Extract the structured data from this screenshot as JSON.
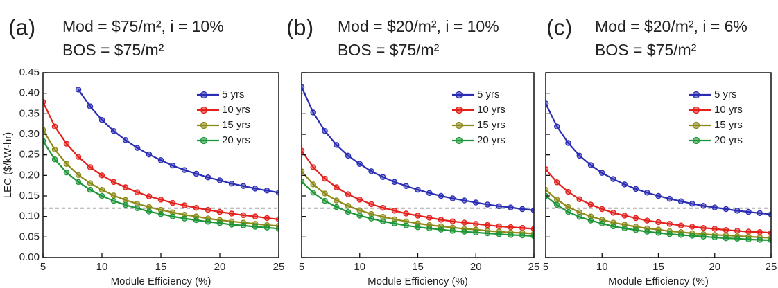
{
  "chart_data": [
    {
      "type": "line",
      "panel_label": "(a)",
      "title": "Mod = $75/m², i = 10%",
      "subtitle": "BOS = $75/m²",
      "xlabel": "Module Efficiency (%)",
      "ylabel": "LEC ($/kW-hr)",
      "x": [
        5,
        6,
        7,
        8,
        9,
        10,
        11,
        12,
        13,
        14,
        15,
        16,
        17,
        18,
        19,
        20,
        21,
        22,
        23,
        24,
        25
      ],
      "xlim": [
        5,
        25
      ],
      "xticks": [
        5,
        10,
        15,
        20,
        25
      ],
      "ylim": [
        0,
        0.45
      ],
      "yticks": [
        {
          "value": 0,
          "label": "0.00"
        },
        {
          "value": 0.05,
          "label": "0.05"
        },
        {
          "value": 0.1,
          "label": "0.10"
        },
        {
          "value": 0.15,
          "label": "0.15"
        },
        {
          "value": 0.2,
          "label": "0.20"
        },
        {
          "value": 0.25,
          "label": "0.25"
        },
        {
          "value": 0.3,
          "label": "0.30"
        },
        {
          "value": 0.35,
          "label": "0.35"
        },
        {
          "value": 0.4,
          "label": "0.40"
        },
        {
          "value": 0.45,
          "label": "0.45"
        }
      ],
      "reference_line": 0.12,
      "series": [
        {
          "name": "5 yrs",
          "color": "#2a2db3",
          "values": [
            null,
            null,
            null,
            0.409,
            0.368,
            0.335,
            0.308,
            0.286,
            0.267,
            0.251,
            0.237,
            0.224,
            0.213,
            0.204,
            0.195,
            0.188,
            0.18,
            0.174,
            0.168,
            0.163,
            0.158
          ]
        },
        {
          "name": "10 yrs",
          "color": "#e3201b",
          "values": [
            0.379,
            0.319,
            0.277,
            0.245,
            0.22,
            0.2,
            0.184,
            0.171,
            0.159,
            0.149,
            0.141,
            0.133,
            0.127,
            0.121,
            0.116,
            0.111,
            0.107,
            0.103,
            0.1,
            0.096,
            0.093
          ]
        },
        {
          "name": "15 yrs",
          "color": "#8c8a17",
          "values": [
            0.311,
            0.263,
            0.228,
            0.201,
            0.181,
            0.165,
            0.151,
            0.14,
            0.131,
            0.123,
            0.116,
            0.11,
            0.104,
            0.1,
            0.095,
            0.091,
            0.088,
            0.085,
            0.082,
            0.079,
            0.077
          ]
        },
        {
          "name": "20 yrs",
          "color": "#1c9638",
          "values": [
            0.284,
            0.239,
            0.207,
            0.184,
            0.165,
            0.15,
            0.138,
            0.128,
            0.12,
            0.112,
            0.106,
            0.1,
            0.095,
            0.091,
            0.087,
            0.084,
            0.08,
            0.078,
            0.075,
            0.073,
            0.07
          ]
        }
      ]
    },
    {
      "type": "line",
      "panel_label": "(b)",
      "title": "Mod = $20/m², i = 10%",
      "subtitle": "BOS = $75/m²",
      "xlabel": "Module Efficiency (%)",
      "x": [
        5,
        6,
        7,
        8,
        9,
        10,
        11,
        12,
        13,
        14,
        15,
        16,
        17,
        18,
        19,
        20,
        21,
        22,
        23,
        24,
        25
      ],
      "xlim": [
        5,
        25
      ],
      "xticks": [
        5,
        10,
        15,
        20,
        25
      ],
      "ylim": [
        0,
        0.45
      ],
      "yticks": [
        0,
        0.05,
        0.1,
        0.15,
        0.2,
        0.25,
        0.3,
        0.35,
        0.4,
        0.45
      ],
      "reference_line": 0.12,
      "series": [
        {
          "name": "5 yrs",
          "color": "#2a2db3",
          "values": [
            0.415,
            0.353,
            0.308,
            0.274,
            0.248,
            0.228,
            0.21,
            0.196,
            0.184,
            0.174,
            0.165,
            0.157,
            0.15,
            0.144,
            0.139,
            0.134,
            0.129,
            0.125,
            0.122,
            0.118,
            0.115
          ]
        },
        {
          "name": "10 yrs",
          "color": "#e3201b",
          "values": [
            0.26,
            0.22,
            0.192,
            0.171,
            0.154,
            0.141,
            0.13,
            0.121,
            0.114,
            0.107,
            0.102,
            0.097,
            0.092,
            0.088,
            0.085,
            0.082,
            0.079,
            0.076,
            0.074,
            0.072,
            0.07
          ]
        },
        {
          "name": "15 yrs",
          "color": "#8c8a17",
          "values": [
            0.21,
            0.178,
            0.156,
            0.139,
            0.126,
            0.115,
            0.106,
            0.099,
            0.093,
            0.088,
            0.083,
            0.079,
            0.076,
            0.073,
            0.07,
            0.068,
            0.065,
            0.063,
            0.061,
            0.06,
            0.058
          ]
        },
        {
          "name": "20 yrs",
          "color": "#1c9638",
          "values": [
            0.185,
            0.158,
            0.138,
            0.123,
            0.111,
            0.102,
            0.095,
            0.088,
            0.083,
            0.078,
            0.074,
            0.071,
            0.068,
            0.065,
            0.063,
            0.061,
            0.059,
            0.057,
            0.055,
            0.054,
            0.052
          ]
        }
      ]
    },
    {
      "type": "line",
      "panel_label": "(c)",
      "title": "Mod = $20/m², i = 6%",
      "subtitle": "BOS = $75/m²",
      "xlabel": "Module Efficiency (%)",
      "x": [
        5,
        6,
        7,
        8,
        9,
        10,
        11,
        12,
        13,
        14,
        15,
        16,
        17,
        18,
        19,
        20,
        21,
        22,
        23,
        24,
        25
      ],
      "xlim": [
        5,
        25
      ],
      "xticks": [
        5,
        10,
        15,
        20,
        25
      ],
      "ylim": [
        0,
        0.45
      ],
      "yticks": [
        0,
        0.05,
        0.1,
        0.15,
        0.2,
        0.25,
        0.3,
        0.35,
        0.4,
        0.45
      ],
      "reference_line": 0.12,
      "series": [
        {
          "name": "5 yrs",
          "color": "#2a2db3",
          "values": [
            0.375,
            0.319,
            0.279,
            0.248,
            0.225,
            0.206,
            0.191,
            0.178,
            0.167,
            0.158,
            0.15,
            0.143,
            0.137,
            0.131,
            0.126,
            0.122,
            0.118,
            0.114,
            0.111,
            0.108,
            0.105
          ]
        },
        {
          "name": "10 yrs",
          "color": "#e3201b",
          "values": [
            0.215,
            0.183,
            0.16,
            0.142,
            0.129,
            0.118,
            0.109,
            0.102,
            0.096,
            0.09,
            0.086,
            0.082,
            0.078,
            0.075,
            0.072,
            0.07,
            0.067,
            0.065,
            0.063,
            0.062,
            0.06
          ]
        },
        {
          "name": "15 yrs",
          "color": "#8c8a17",
          "values": [
            0.165,
            0.141,
            0.123,
            0.11,
            0.1,
            0.092,
            0.085,
            0.08,
            0.075,
            0.071,
            0.068,
            0.064,
            0.062,
            0.059,
            0.057,
            0.055,
            0.054,
            0.052,
            0.051,
            0.049,
            0.048
          ]
        },
        {
          "name": "20 yrs",
          "color": "#1c9638",
          "values": [
            0.15,
            0.128,
            0.111,
            0.099,
            0.09,
            0.083,
            0.076,
            0.071,
            0.067,
            0.063,
            0.06,
            0.057,
            0.055,
            0.053,
            0.051,
            0.049,
            0.047,
            0.046,
            0.044,
            0.043,
            0.042
          ]
        }
      ]
    }
  ]
}
